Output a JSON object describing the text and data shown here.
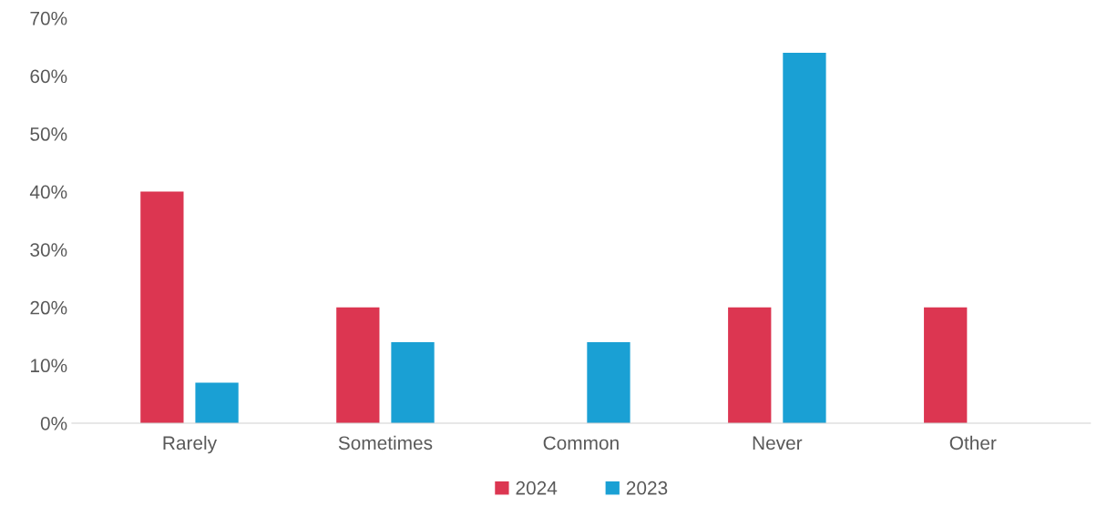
{
  "chart_data": {
    "type": "bar",
    "categories": [
      "Rarely",
      "Sometimes",
      "Common",
      "Never",
      "Other"
    ],
    "series": [
      {
        "name": "2024",
        "color": "#dc3651",
        "values": [
          40,
          20,
          null,
          20,
          20
        ]
      },
      {
        "name": "2023",
        "color": "#1aa0d4",
        "values": [
          7,
          14,
          14,
          64,
          null
        ]
      }
    ],
    "ylim": [
      0,
      70
    ],
    "yticks": [
      {
        "value": 0,
        "label": "0%"
      },
      {
        "value": 10,
        "label": "10%"
      },
      {
        "value": 20,
        "label": "20%"
      },
      {
        "value": 30,
        "label": "30%"
      },
      {
        "value": 40,
        "label": "40%"
      },
      {
        "value": 50,
        "label": "50%"
      },
      {
        "value": 60,
        "label": "60%"
      },
      {
        "value": 70,
        "label": "70%"
      }
    ],
    "grid": false,
    "legend": "bottom"
  }
}
